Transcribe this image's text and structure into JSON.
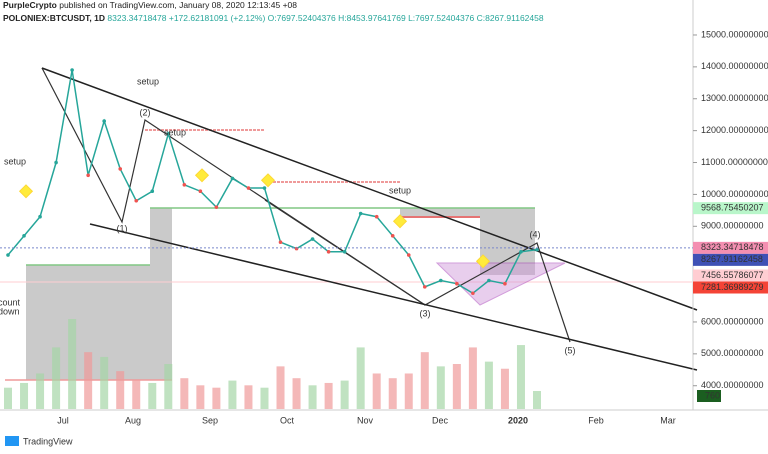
{
  "header": {
    "publisher": "PurpleCrypto",
    "published": "published on TradingView.com, January 08, 2020 12:13:45 +08",
    "symbol": "POLONIEX:BTCUSDT, 1D",
    "last": "8323.34718478",
    "change": "+172.62181091 (+2.12%)",
    "open": "O:7697.52404376",
    "high": "H:8453.97641769",
    "low": "L:7697.52404376",
    "close": "C:8267.91162458"
  },
  "chart_data": {
    "type": "line",
    "color": "#26a69a",
    "xticks": [
      "Jul",
      "Aug",
      "Sep",
      "Oct",
      "Nov",
      "Dec",
      "2020",
      "Feb",
      "Mar"
    ],
    "values": [
      8100,
      8700,
      9300,
      11000,
      13900,
      10600,
      12300,
      10800,
      9800,
      10100,
      11900,
      10300,
      10100,
      9600,
      10500,
      10200,
      10200,
      8500,
      8300,
      8600,
      8200,
      8200,
      9400,
      9300,
      8700,
      8100,
      7100,
      7300,
      7200,
      6900,
      7300,
      7200,
      8200,
      8267.91162458
    ],
    "volume": [
      900,
      1100,
      1500,
      2600,
      3800,
      2400,
      2200,
      1600,
      1200,
      1100,
      1900,
      1300,
      1000,
      900,
      1200,
      1000,
      900,
      1800,
      1300,
      1000,
      1100,
      1200,
      2600,
      1500,
      1300,
      1500,
      2400,
      1800,
      1900,
      2600,
      2000,
      1700,
      2700,
      760
    ],
    "volume_label": "760",
    "volume_color": "#a5d6a7",
    "ylim": [
      3270,
      16097
    ],
    "yticks": [
      {
        "value": 4000,
        "label": "4000.00000000"
      },
      {
        "value": 5000,
        "label": "5000.00000000"
      },
      {
        "value": 6000,
        "label": "6000.00000000"
      },
      {
        "value": 7000,
        "label": "7000.00000000"
      },
      {
        "value": 8000,
        "label": "8000.00000000"
      },
      {
        "value": 9000,
        "label": "9000.00000000"
      },
      {
        "value": 10000,
        "label": "10000.00000000"
      },
      {
        "value": 11000,
        "label": "11000.00000000"
      },
      {
        "value": 12000,
        "label": "12000.00000000"
      },
      {
        "value": 13000,
        "label": "13000.00000000"
      },
      {
        "value": 14000,
        "label": "14000.00000000"
      },
      {
        "value": 15000,
        "label": "15000.00000000"
      }
    ],
    "price_labels": [
      {
        "value": 9568.75450207,
        "label": "9568.75450207",
        "color": "#b9f6ca"
      },
      {
        "value": 8323.34718478,
        "label": "8323.34718478",
        "color": "#f48fb1"
      },
      {
        "value": 8267.91162458,
        "label": "8267.91162458",
        "color": "#3f51b5"
      },
      {
        "value": 7456.55786077,
        "label": "7456.55786077",
        "color": "#ffcdd2"
      },
      {
        "value": 7281.36989279,
        "label": "7281.36989279",
        "color": "#f44336"
      }
    ],
    "annotations": [
      "setup",
      "setup",
      "(2)",
      "setup",
      "setup",
      "(1)",
      "(3)",
      "(4)",
      "(5)",
      "count",
      "down"
    ]
  },
  "footer": "TradingView"
}
